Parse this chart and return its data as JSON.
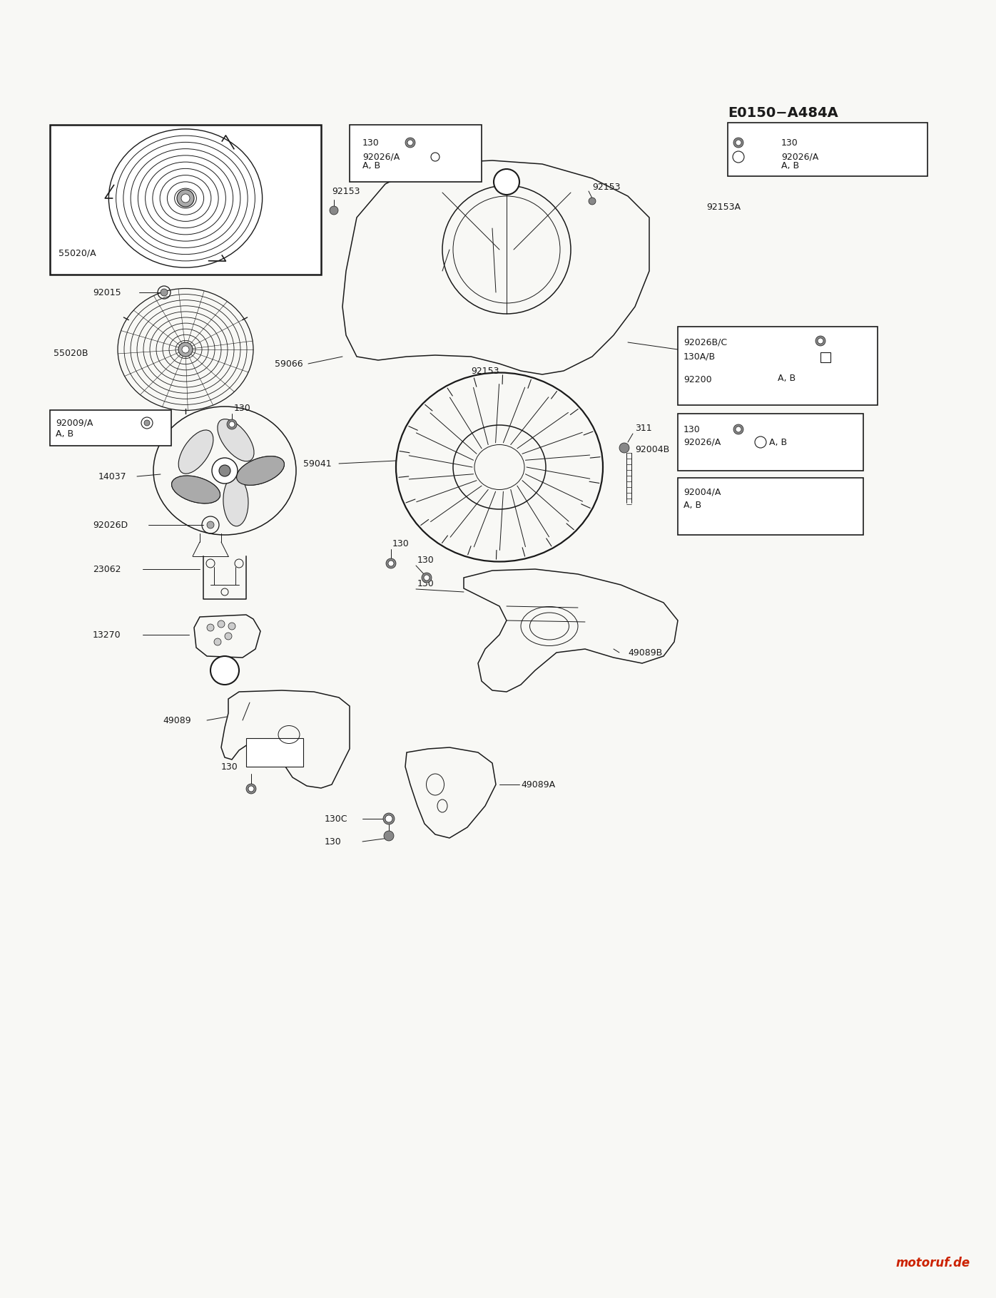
{
  "bg_color": "#f8f8f5",
  "watermark": "motoruf.de",
  "fig_width": 13.76,
  "fig_height": 18.0,
  "col": "#1a1a1a",
  "lw_thin": 0.7,
  "lw_med": 1.1,
  "lw_thick": 1.6
}
